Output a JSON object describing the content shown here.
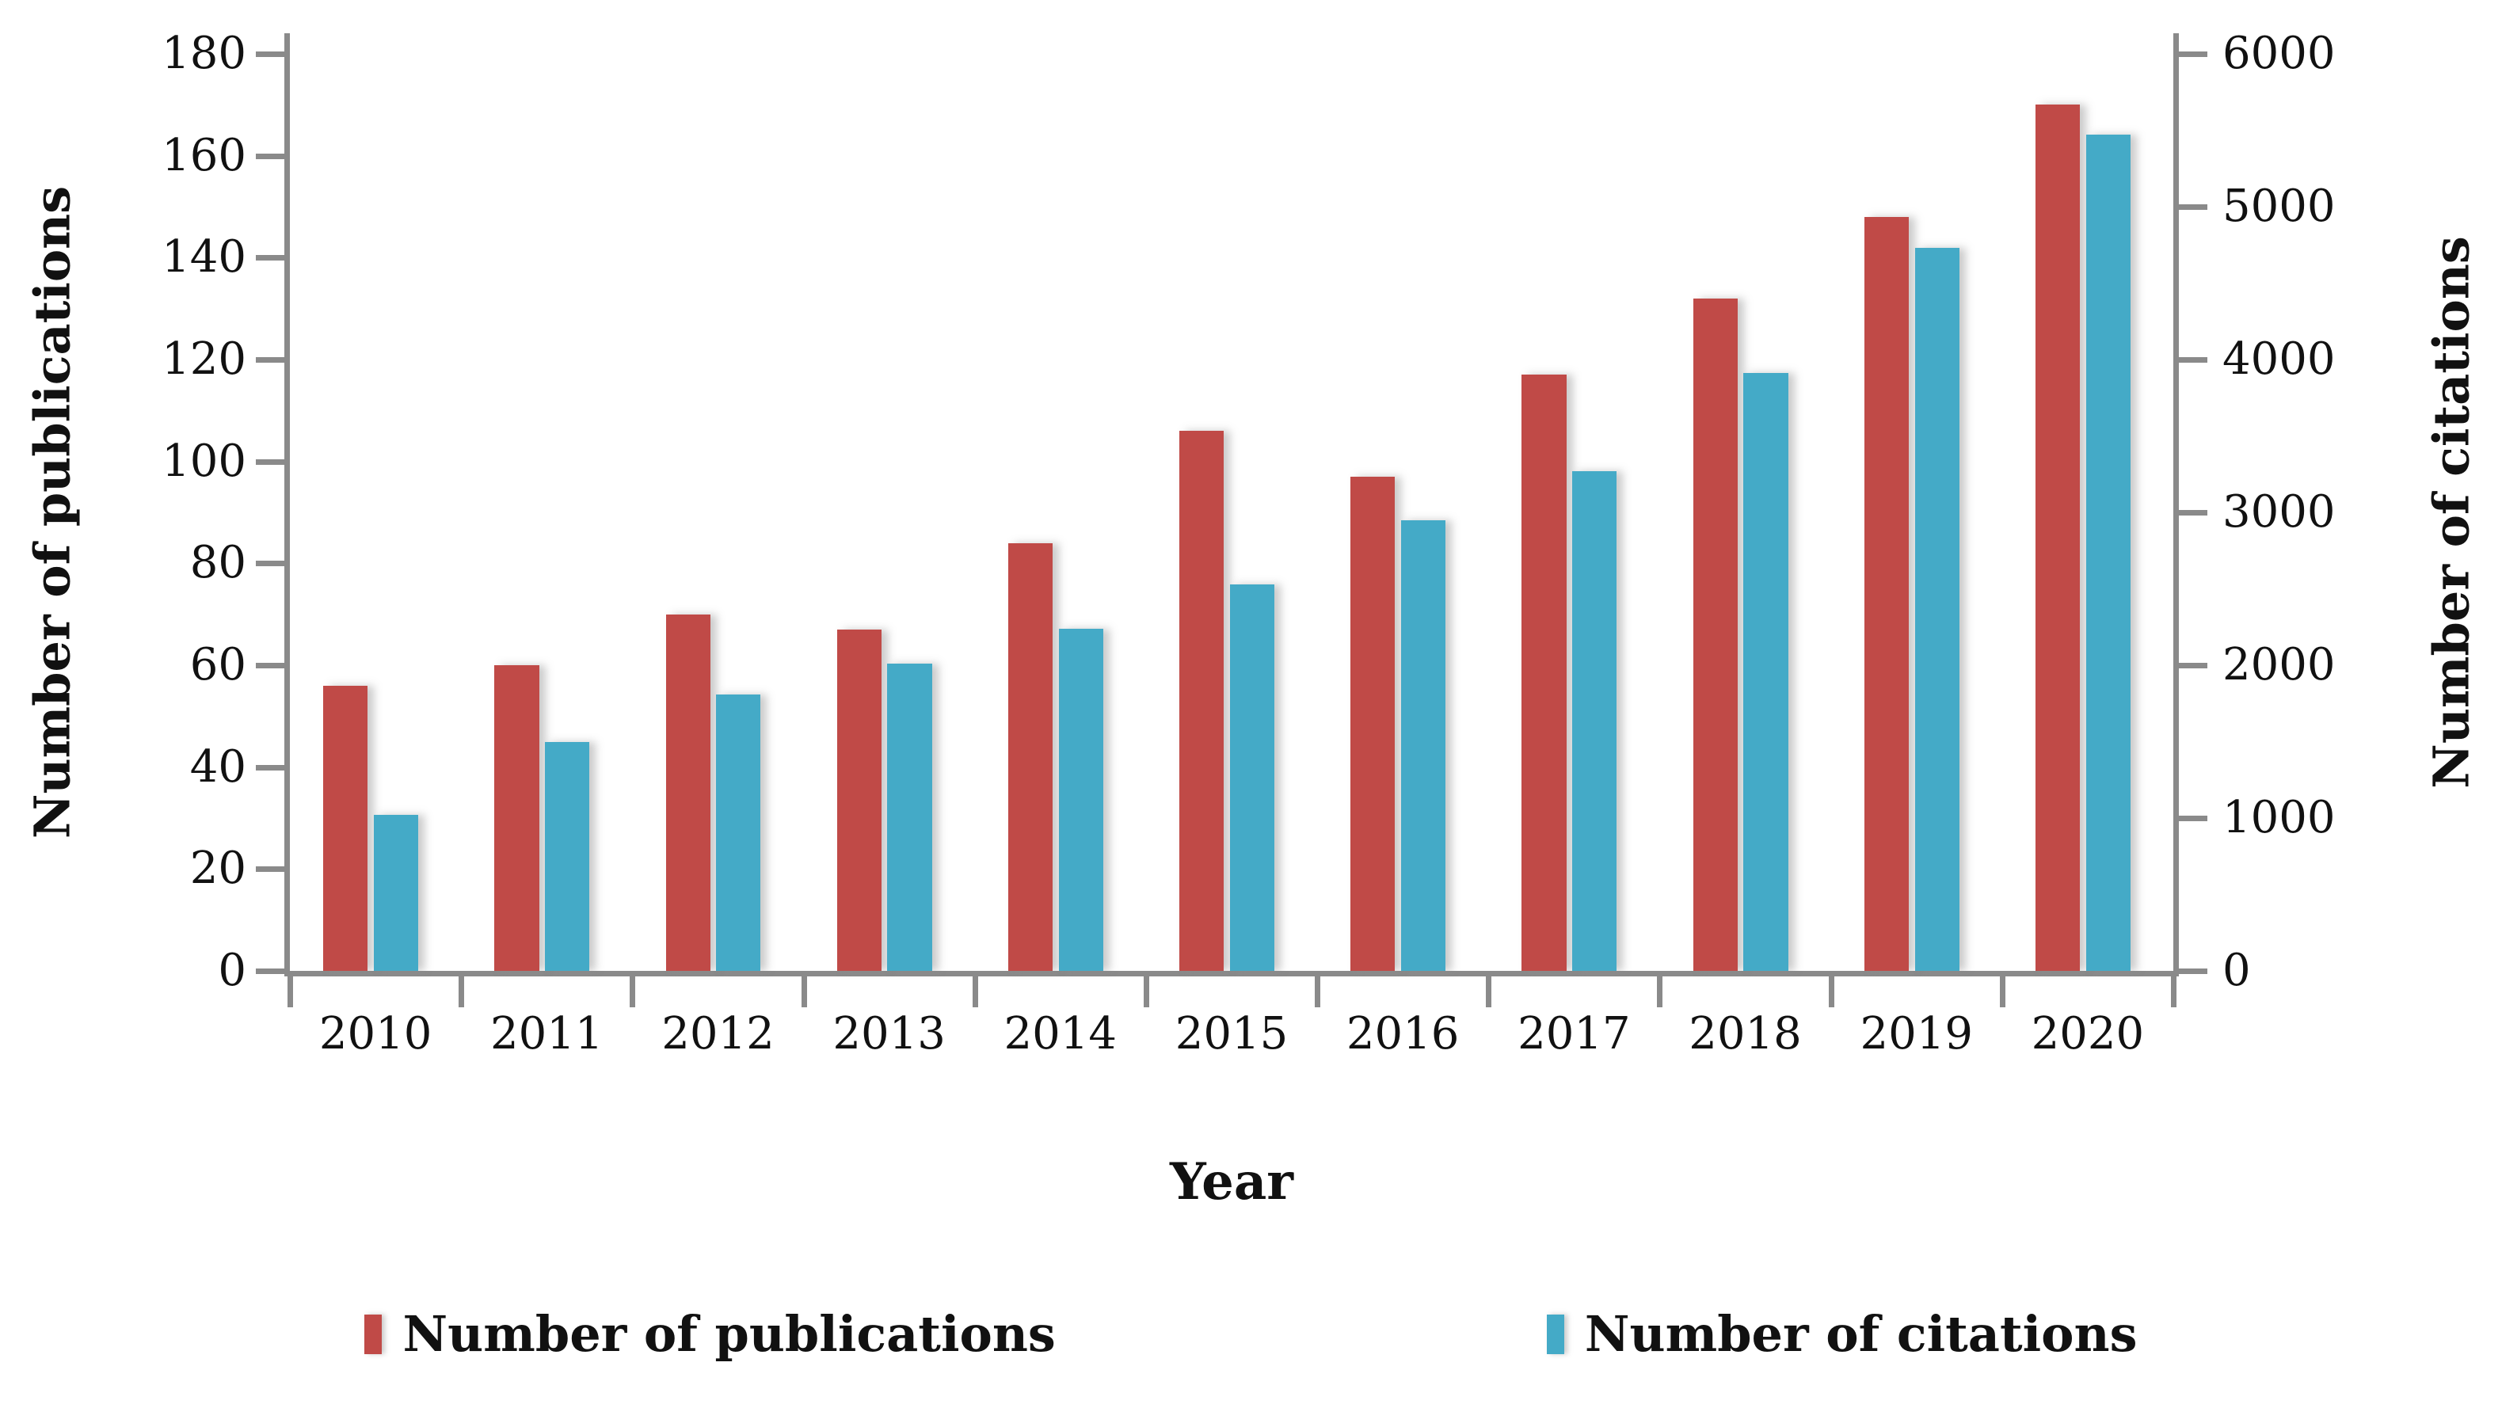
{
  "chart_data": {
    "type": "bar",
    "title": "",
    "xlabel": "Year",
    "categories": [
      "2010",
      "2011",
      "2012",
      "2013",
      "2014",
      "2015",
      "2016",
      "2017",
      "2018",
      "2019",
      "2020"
    ],
    "series": [
      {
        "name": "Number of publications",
        "axis": "left",
        "color": "#C04A47",
        "values": [
          56,
          60,
          70,
          67,
          84,
          106,
          97,
          117,
          132,
          148,
          170
        ]
      },
      {
        "name": "Number of citations",
        "axis": "right",
        "color": "#44AAC7",
        "values": [
          1020,
          1500,
          1810,
          2010,
          2240,
          2530,
          2950,
          3270,
          3910,
          4730,
          5470
        ]
      }
    ],
    "left_axis": {
      "label": "Number of publications",
      "min": 0,
      "max": 180,
      "step": 20,
      "ticks": [
        "0",
        "20",
        "40",
        "60",
        "80",
        "100",
        "120",
        "140",
        "160",
        "180"
      ]
    },
    "right_axis": {
      "label": "Number of citations",
      "min": 0,
      "max": 6000,
      "step": 1000,
      "ticks": [
        "0",
        "1000",
        "2000",
        "3000",
        "4000",
        "5000",
        "6000"
      ]
    },
    "legend": {
      "position": "bottom"
    },
    "grid": false
  },
  "styles": {
    "axis_color": "#8a8a8a",
    "text_color": "#111111",
    "background": "#ffffff",
    "publications_color": "#C04A47",
    "citations_color": "#44AAC7"
  }
}
